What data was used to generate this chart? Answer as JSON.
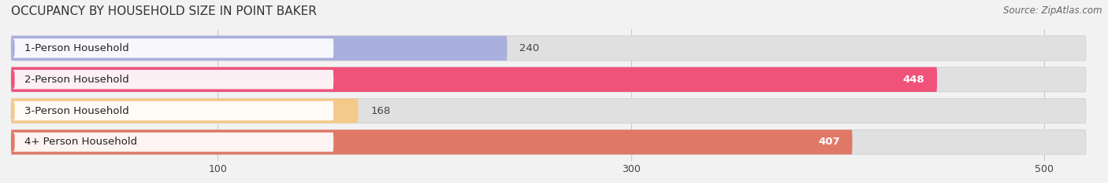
{
  "title": "OCCUPANCY BY HOUSEHOLD SIZE IN POINT BAKER",
  "source": "Source: ZipAtlas.com",
  "categories": [
    "1-Person Household",
    "2-Person Household",
    "3-Person Household",
    "4+ Person Household"
  ],
  "values": [
    240,
    448,
    168,
    407
  ],
  "bar_colors": [
    "#aab0dd",
    "#f0527a",
    "#f5c98a",
    "#e07868"
  ],
  "label_colors": [
    "#333333",
    "#ffffff",
    "#333333",
    "#ffffff"
  ],
  "bg_color": "#f2f2f2",
  "bar_bg_color": "#e0e0e0",
  "xlim_min": 0,
  "xlim_max": 520,
  "xticks": [
    100,
    300,
    500
  ],
  "title_fontsize": 11,
  "source_fontsize": 8.5,
  "label_fontsize": 9.5,
  "value_fontsize": 9.5
}
